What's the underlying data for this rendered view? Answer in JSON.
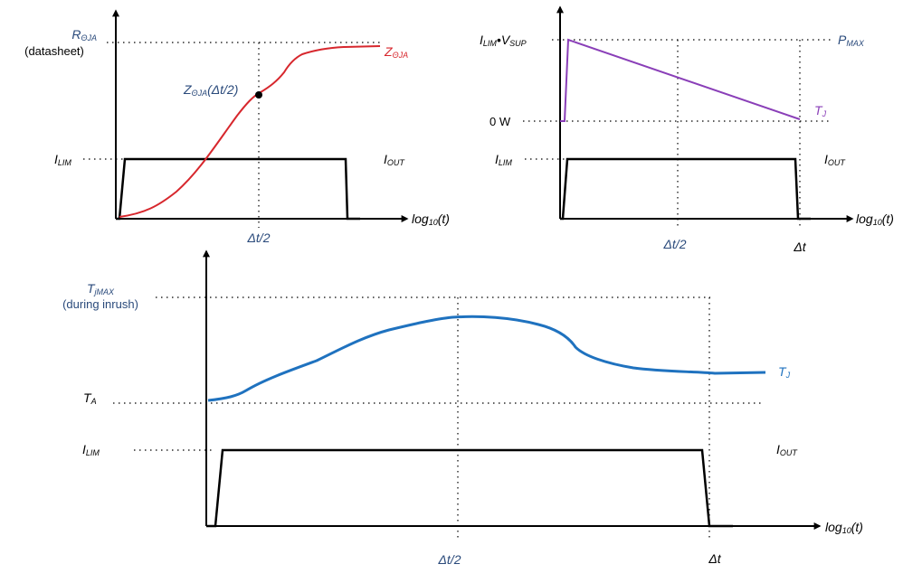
{
  "colors": {
    "black": "#000000",
    "red": "#d7272d",
    "purple": "#8a3fb8",
    "blue": "#1f72bf",
    "navy": "#2a4a7b"
  },
  "top_left": {
    "r_main": "R",
    "r_sub": "ΘJA",
    "r_note": "(datasheet)",
    "z_main": "Z",
    "z_sub": "ΘJA",
    "zmid_main": "Z",
    "zmid_sub": "ΘJA",
    "zmid_arg": "(Δt/2)",
    "ilim_main": "I",
    "ilim_sub": "LIM",
    "iout_main": "I",
    "iout_sub": "OUT",
    "x_main": "log",
    "x_sub": "10",
    "x_arg": "(t)",
    "tick_half": "Δt/2"
  },
  "top_right": {
    "p_i": "I",
    "p_isub": "LIM",
    "p_dot": "•",
    "p_v": "V",
    "p_vsub": "SUP",
    "zero": "0 W",
    "pmax_main": "P",
    "pmax_sub": "MAX",
    "tj_main": "T",
    "tj_sub": "J",
    "ilim_main": "I",
    "ilim_sub": "LIM",
    "iout_main": "I",
    "iout_sub": "OUT",
    "x_main": "log",
    "x_sub": "10",
    "x_arg": "(t)",
    "tick_half": "Δt/2",
    "tick_full": "Δt"
  },
  "bottom": {
    "tjmax_main": "T",
    "tjmax_sub": "jMAX",
    "tjmax_note": "(during inrush)",
    "ta_main": "T",
    "ta_sub": "A",
    "ilim_main": "I",
    "ilim_sub": "LIM",
    "iout_main": "I",
    "iout_sub": "OUT",
    "tj_main": "T",
    "tj_sub": "J",
    "x_main": "log",
    "x_sub": "10",
    "x_arg": "(t)",
    "tick_half": "Δt/2",
    "tick_full": "Δt"
  }
}
